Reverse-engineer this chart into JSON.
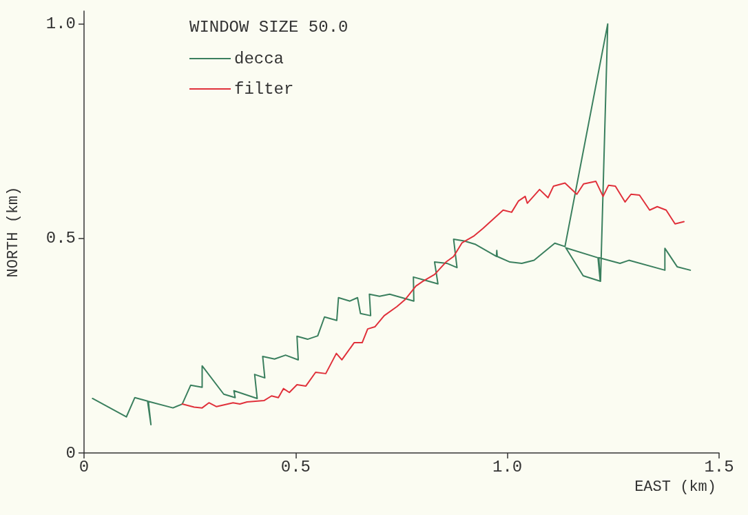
{
  "chart_data": {
    "type": "line",
    "legend_title": "WINDOW SIZE 50.0",
    "xlabel": "EAST (km)",
    "ylabel": "NORTH (km)",
    "xlim": [
      0,
      1.5
    ],
    "xticks": [
      0,
      0.5,
      {
        "value": 1,
        "label": "1.0"
      },
      1.5
    ],
    "ylim": [
      0,
      1.03
    ],
    "yticks": [
      0,
      0.5,
      {
        "value": 1,
        "label": "1.0"
      }
    ],
    "grid": false,
    "legend": "top left",
    "marker": "none",
    "line_style": "solid",
    "series": [
      {
        "name": "decca",
        "color": "#3a7f5e",
        "x": [
          0.02,
          0.1,
          0.12,
          0.15,
          0.158,
          0.152,
          0.21,
          0.232,
          0.252,
          0.279,
          0.279,
          0.33,
          0.357,
          0.354,
          0.409,
          0.403,
          0.427,
          0.422,
          0.45,
          0.476,
          0.506,
          0.503,
          0.528,
          0.552,
          0.568,
          0.597,
          0.601,
          0.628,
          0.646,
          0.653,
          0.677,
          0.674,
          0.698,
          0.722,
          0.758,
          0.779,
          0.778,
          0.807,
          0.836,
          0.828,
          0.857,
          0.881,
          0.873,
          0.898,
          0.925,
          0.974,
          0.975,
          0.976,
          1.006,
          1.034,
          1.063,
          1.112,
          1.136,
          1.237,
          1.22,
          1.179,
          1.138,
          1.214,
          1.219,
          1.216,
          1.266,
          1.287,
          1.372,
          1.372,
          1.401,
          1.432
        ],
        "values": [
          0.127,
          0.084,
          0.129,
          0.121,
          0.066,
          0.12,
          0.105,
          0.114,
          0.158,
          0.153,
          0.203,
          0.137,
          0.129,
          0.145,
          0.127,
          0.183,
          0.175,
          0.225,
          0.219,
          0.228,
          0.217,
          0.272,
          0.265,
          0.273,
          0.317,
          0.309,
          0.362,
          0.354,
          0.362,
          0.325,
          0.32,
          0.37,
          0.365,
          0.37,
          0.36,
          0.354,
          0.41,
          0.402,
          0.394,
          0.445,
          0.442,
          0.432,
          0.498,
          0.494,
          0.486,
          0.458,
          0.472,
          0.458,
          0.445,
          0.442,
          0.449,
          0.489,
          0.481,
          1.0,
          0.4,
          0.413,
          0.478,
          0.455,
          0.403,
          0.455,
          0.442,
          0.449,
          0.426,
          0.477,
          0.434,
          0.426
        ]
      },
      {
        "name": "filter",
        "color": "#e0303a",
        "x": [
          0.232,
          0.26,
          0.279,
          0.295,
          0.313,
          0.352,
          0.368,
          0.385,
          0.425,
          0.443,
          0.459,
          0.471,
          0.485,
          0.503,
          0.524,
          0.547,
          0.571,
          0.596,
          0.609,
          0.638,
          0.657,
          0.67,
          0.687,
          0.709,
          0.739,
          0.758,
          0.784,
          0.8,
          0.828,
          0.855,
          0.873,
          0.893,
          0.92,
          0.942,
          0.99,
          1.01,
          1.026,
          1.042,
          1.047,
          1.076,
          1.096,
          1.109,
          1.136,
          1.164,
          1.18,
          1.209,
          1.226,
          1.239,
          1.255,
          1.278,
          1.292,
          1.312,
          1.336,
          1.354,
          1.375,
          1.396,
          1.417
        ],
        "values": [
          0.114,
          0.107,
          0.105,
          0.117,
          0.108,
          0.117,
          0.114,
          0.119,
          0.122,
          0.133,
          0.129,
          0.15,
          0.141,
          0.159,
          0.156,
          0.188,
          0.185,
          0.232,
          0.217,
          0.257,
          0.257,
          0.289,
          0.294,
          0.32,
          0.341,
          0.357,
          0.389,
          0.4,
          0.416,
          0.445,
          0.458,
          0.49,
          0.505,
          0.523,
          0.566,
          0.561,
          0.587,
          0.598,
          0.582,
          0.614,
          0.595,
          0.622,
          0.629,
          0.603,
          0.627,
          0.633,
          0.598,
          0.624,
          0.622,
          0.585,
          0.603,
          0.601,
          0.566,
          0.574,
          0.566,
          0.534,
          0.539
        ]
      }
    ]
  }
}
